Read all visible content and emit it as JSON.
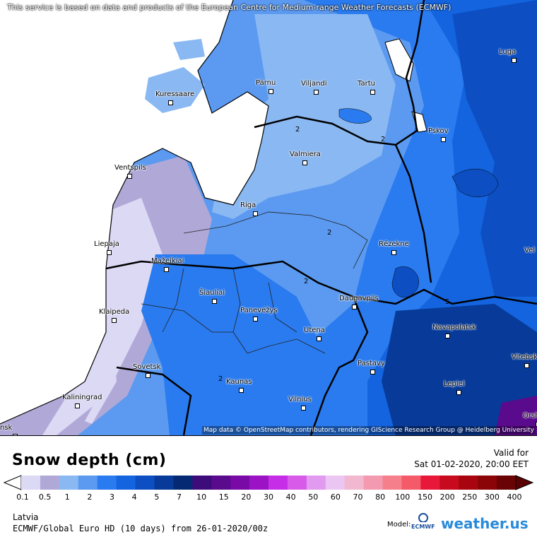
{
  "map": {
    "notice": "This service is based on data and products of the European Centre for Medium-range Weather Forecasts (ECMWF)",
    "attribution": "Map data © OpenStreetMap contributors, rendering GIScience Research Group @ Heidelberg University",
    "cities": [
      {
        "name": "Kuressaare"
      },
      {
        "name": "Pärnu"
      },
      {
        "name": "Viljandi"
      },
      {
        "name": "Tartu"
      },
      {
        "name": "Luga"
      },
      {
        "name": "Pskov"
      },
      {
        "name": "Ventspils"
      },
      {
        "name": "Valmiera"
      },
      {
        "name": "Riga"
      },
      {
        "name": "Liepaja"
      },
      {
        "name": "Rēzekne"
      },
      {
        "name": "Mažeikiai"
      },
      {
        "name": "Šiauliai"
      },
      {
        "name": "Klaipeda"
      },
      {
        "name": "Panevėžys"
      },
      {
        "name": "Daugavpils"
      },
      {
        "name": "Navapolatsk"
      },
      {
        "name": "Utena"
      },
      {
        "name": "Sovetsk"
      },
      {
        "name": "Pastavy"
      },
      {
        "name": "Kaunas"
      },
      {
        "name": "Lepiel"
      },
      {
        "name": "Kaliningrad"
      },
      {
        "name": "Vilnius"
      },
      {
        "name": "Vitebsk"
      },
      {
        "name": "Orsha"
      },
      {
        "name": "Vel"
      },
      {
        "name": "nsk"
      }
    ],
    "contour_labels": [
      "2",
      "2",
      "2",
      "2",
      "5",
      "2"
    ]
  },
  "legend": {
    "title": "Snow depth (cm)",
    "valid_label": "Valid for",
    "valid_time": "Sat 01-02-2020, 20:00 EET",
    "colors": [
      "#dcd9f5",
      "#b0a9d8",
      "#8ab8f2",
      "#5b9af0",
      "#2a7bef",
      "#1464e0",
      "#0d4fc2",
      "#083b99",
      "#052a73",
      "#3e0b7a",
      "#5a0a8c",
      "#7a0aa6",
      "#9b13c4",
      "#c52ee6",
      "#d85ae8",
      "#e29af0",
      "#ecc6f2",
      "#f2b8d0",
      "#f49ab0",
      "#f5808c",
      "#f45a68",
      "#e8183a",
      "#c80a1e",
      "#a8050e",
      "#8a0408",
      "#6a0305"
    ],
    "ticks": [
      "0.1",
      "0.5",
      "1",
      "2",
      "3",
      "4",
      "5",
      "7",
      "10",
      "15",
      "20",
      "30",
      "40",
      "50",
      "60",
      "70",
      "80",
      "100",
      "150",
      "200",
      "250",
      "300",
      "400"
    ],
    "region": "Latvia",
    "model_run": "ECMWF/Global Euro HD (10 days) from 26-01-2020/00z",
    "model_label": "Model:",
    "model_logo": "ECMWF",
    "brand": "weather.us"
  }
}
